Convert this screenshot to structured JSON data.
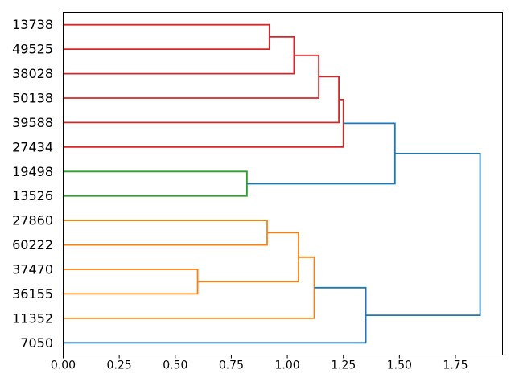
{
  "figure": {
    "background": "#ffffff",
    "title": ""
  },
  "chart_data": {
    "type": "dendrogram",
    "root_side": "right",
    "title": "",
    "xlabel": "",
    "ylabel": "",
    "grid": false,
    "xlim": [
      0,
      1.96
    ],
    "x_tick_labels": [
      "0.00",
      "0.25",
      "0.50",
      "0.75",
      "1.00",
      "1.25",
      "1.50",
      "1.75"
    ],
    "leaves_top_to_bottom": [
      "13738",
      "49525",
      "38028",
      "50138",
      "39588",
      "27434",
      "19498",
      "13526",
      "27860",
      "60222",
      "37470",
      "36155",
      "11352",
      "7050"
    ],
    "link_colors": {
      "red": "#d62728",
      "green": "#2ca02c",
      "orange": "#ff7f0e",
      "blue": "#1f77b4"
    },
    "axis_color": "#000000",
    "merges": [
      {
        "id": "M0",
        "children": [
          "37470",
          "36155"
        ],
        "height": 0.6,
        "color": "orange"
      },
      {
        "id": "M1",
        "children": [
          "19498",
          "13526"
        ],
        "height": 0.82,
        "color": "green"
      },
      {
        "id": "M2",
        "children": [
          "27860",
          "60222"
        ],
        "height": 0.91,
        "color": "orange"
      },
      {
        "id": "M3",
        "children": [
          "13738",
          "49525"
        ],
        "height": 0.92,
        "color": "red"
      },
      {
        "id": "M4",
        "children": [
          "M3",
          "38028"
        ],
        "height": 1.03,
        "color": "red"
      },
      {
        "id": "M5",
        "children": [
          "M2",
          "M0"
        ],
        "height": 1.05,
        "color": "orange"
      },
      {
        "id": "M6",
        "children": [
          "M4",
          "50138"
        ],
        "height": 1.14,
        "color": "red"
      },
      {
        "id": "M7",
        "children": [
          "M5",
          "11352"
        ],
        "height": 1.12,
        "color": "orange"
      },
      {
        "id": "M8",
        "children": [
          "M6",
          "39588"
        ],
        "height": 1.23,
        "color": "red"
      },
      {
        "id": "M9",
        "children": [
          "M8",
          "27434"
        ],
        "height": 1.25,
        "color": "red"
      },
      {
        "id": "M10",
        "children": [
          "M7",
          "7050"
        ],
        "height": 1.35,
        "color": "blue"
      },
      {
        "id": "M11",
        "children": [
          "M9",
          "M1"
        ],
        "height": 1.48,
        "color": "blue"
      },
      {
        "id": "M12",
        "children": [
          "M11",
          "M10"
        ],
        "height": 1.86,
        "color": "blue"
      }
    ]
  }
}
